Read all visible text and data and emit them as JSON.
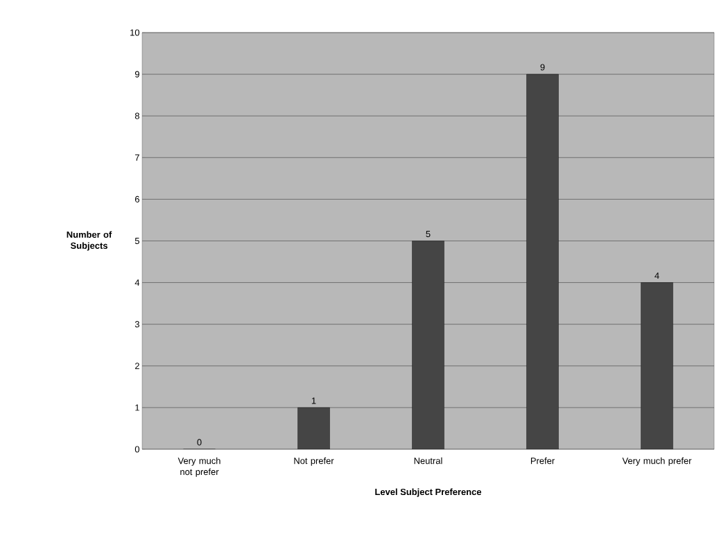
{
  "chart_data": {
    "type": "bar",
    "xlabel": "Level Subject Preference",
    "ylabel": "Number of Subjects",
    "categories": [
      "Very much not prefer",
      "Not prefer",
      "Neutral",
      "Prefer",
      "Very much prefer"
    ],
    "values": [
      0,
      1,
      5,
      9,
      4
    ],
    "color": "#454545",
    "ylim": [
      0,
      10
    ],
    "yticks": [
      0,
      1,
      2,
      3,
      4,
      5,
      6,
      7,
      8,
      9,
      10
    ],
    "grid": "y",
    "data_labels": true
  }
}
